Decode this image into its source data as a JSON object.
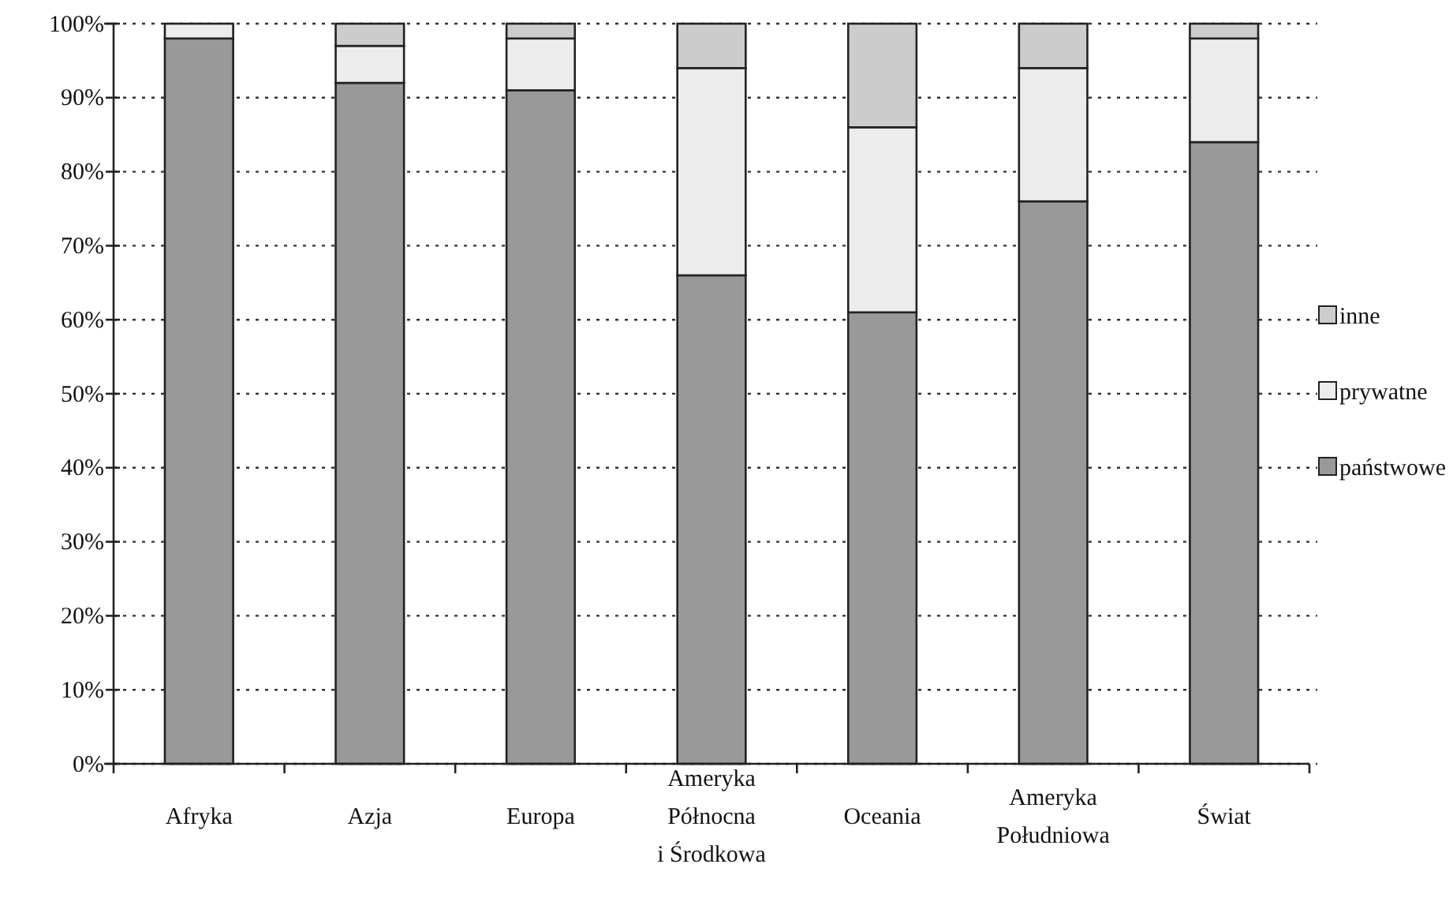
{
  "chart_data": {
    "type": "bar",
    "stacked": true,
    "categories": [
      "Afryka",
      "Azja",
      "Europa",
      "Ameryka Północna i Środkowa",
      "Oceania",
      "Ameryka Południowa",
      "Świat"
    ],
    "series": [
      {
        "name": "państwowe",
        "color": "#999999",
        "values": [
          98,
          92,
          91,
          66,
          61,
          76,
          84
        ]
      },
      {
        "name": "prywatne",
        "color": "#ececec",
        "values": [
          2,
          5,
          7,
          28,
          25,
          18,
          14
        ]
      },
      {
        "name": "inne",
        "color": "#cccccc",
        "values": [
          0,
          3,
          2,
          6,
          14,
          6,
          2
        ]
      }
    ],
    "ylim": [
      0,
      100
    ],
    "yticks": [
      {
        "value": 0,
        "label": "0%"
      },
      {
        "value": 10,
        "label": "10%"
      },
      {
        "value": 20,
        "label": "20%"
      },
      {
        "value": 30,
        "label": "30%"
      },
      {
        "value": 40,
        "label": "40%"
      },
      {
        "value": 50,
        "label": "50%"
      },
      {
        "value": 60,
        "label": "60%"
      },
      {
        "value": 70,
        "label": "70%"
      },
      {
        "value": 80,
        "label": "80%"
      },
      {
        "value": 90,
        "label": "90%"
      },
      {
        "value": 100,
        "label": "100%"
      }
    ],
    "grid": "y",
    "legend": "right"
  }
}
